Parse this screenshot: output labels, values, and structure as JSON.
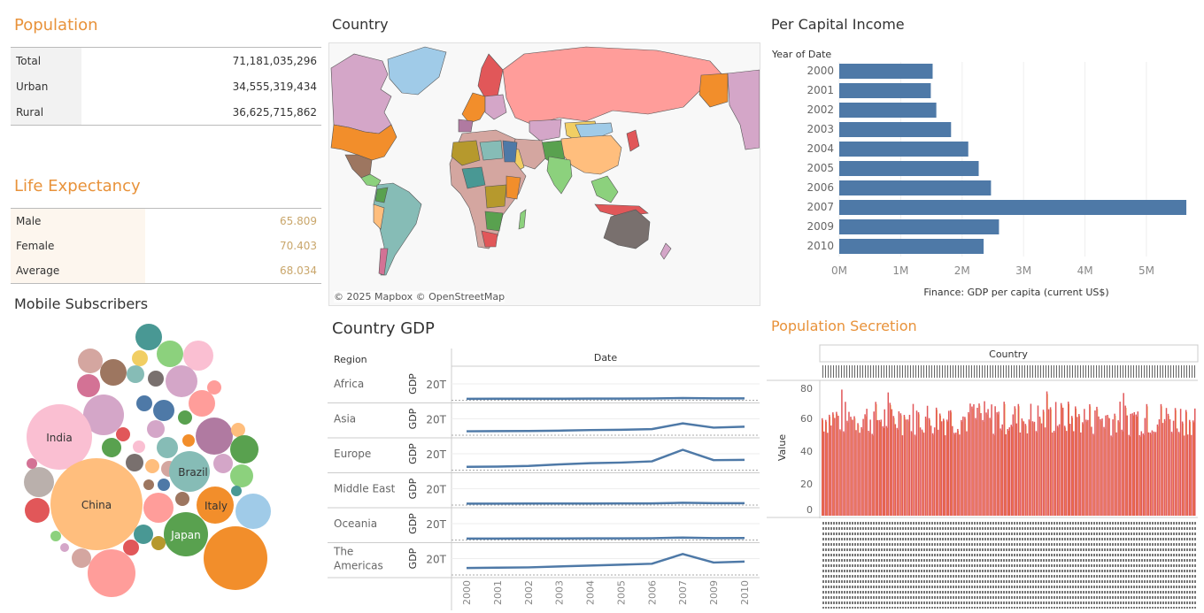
{
  "population": {
    "title": "Population",
    "rows": [
      {
        "label": "Total",
        "value": "71,181,035,296"
      },
      {
        "label": "Urban",
        "value": "34,555,319,434"
      },
      {
        "label": "Rural",
        "value": "36,625,715,862"
      }
    ]
  },
  "life_expectancy": {
    "title": "Life Expectancy",
    "rows": [
      {
        "label": "Male",
        "value": "65.809"
      },
      {
        "label": "Female",
        "value": "70.403"
      },
      {
        "label": "Average",
        "value": "68.034"
      }
    ]
  },
  "mobile": {
    "title": "Mobile Subscribers",
    "labels": [
      "India",
      "China",
      "Brazil",
      "Italy",
      "Japan"
    ]
  },
  "map": {
    "title": "Country",
    "attribution": "© 2025 Mapbox © OpenStreetMap"
  },
  "gdp": {
    "title": "Country GDP",
    "region_header": "Region",
    "date_header": "Date",
    "measure_label": "GDP",
    "tick_label": "20T"
  },
  "income": {
    "title": "Per Capital Income",
    "axis_header": "Year of Date",
    "xlabel": "Finance: GDP per capita (current US$)"
  },
  "secretion": {
    "title": "Population Secretion",
    "header": "Country",
    "ylabel": "Value",
    "yticks": [
      "80",
      "60",
      "40",
      "20",
      "0"
    ]
  },
  "chart_data": [
    {
      "type": "bar",
      "orientation": "horizontal",
      "title": "Per Capital Income",
      "categories": [
        "2000",
        "2001",
        "2002",
        "2003",
        "2004",
        "2005",
        "2006",
        "2007",
        "2009",
        "2010"
      ],
      "values": [
        1.52,
        1.49,
        1.58,
        1.82,
        2.1,
        2.27,
        2.47,
        5.65,
        2.6,
        2.35
      ],
      "value_unit": "M",
      "xticks": [
        "0M",
        "1M",
        "2M",
        "3M",
        "4M",
        "5M"
      ],
      "xlim": [
        0,
        5.75
      ],
      "color": "#4e79a7"
    },
    {
      "type": "line",
      "title": "Country GDP",
      "x": [
        "2000",
        "2001",
        "2002",
        "2003",
        "2004",
        "2005",
        "2006",
        "2007",
        "2009",
        "2010"
      ],
      "series": [
        {
          "name": "Africa",
          "values": [
            1.0,
            1.05,
            1.1,
            1.15,
            1.2,
            1.3,
            1.5,
            2.2,
            1.6,
            1.7
          ]
        },
        {
          "name": "Asia",
          "values": [
            5.0,
            5.2,
            5.5,
            6.0,
            7.0,
            7.5,
            8.5,
            18.0,
            11.0,
            12.5
          ]
        },
        {
          "name": "Europe",
          "values": [
            4.0,
            4.3,
            5.5,
            8.0,
            10.0,
            11.0,
            13.0,
            32.0,
            15.0,
            15.5
          ]
        },
        {
          "name": "Middle East",
          "values": [
            1.0,
            1.0,
            1.05,
            1.1,
            1.15,
            1.2,
            1.3,
            2.3,
            1.6,
            1.7
          ]
        },
        {
          "name": "Oceania",
          "values": [
            1.0,
            1.0,
            1.05,
            1.1,
            1.2,
            1.25,
            1.4,
            2.6,
            1.6,
            1.8
          ]
        },
        {
          "name": "The Americas",
          "values": [
            10.0,
            10.5,
            11.0,
            12.5,
            14.0,
            15.5,
            17.0,
            33.0,
            19.0,
            20.5
          ]
        }
      ],
      "color": "#4e79a7"
    },
    {
      "type": "bar",
      "title": "Population Secretion",
      "ylabel": "Value",
      "ylim": [
        0,
        80
      ],
      "yticks": [
        0,
        20,
        40,
        60,
        80
      ],
      "colors": [
        "#e15759",
        "#f28e2b"
      ]
    }
  ]
}
